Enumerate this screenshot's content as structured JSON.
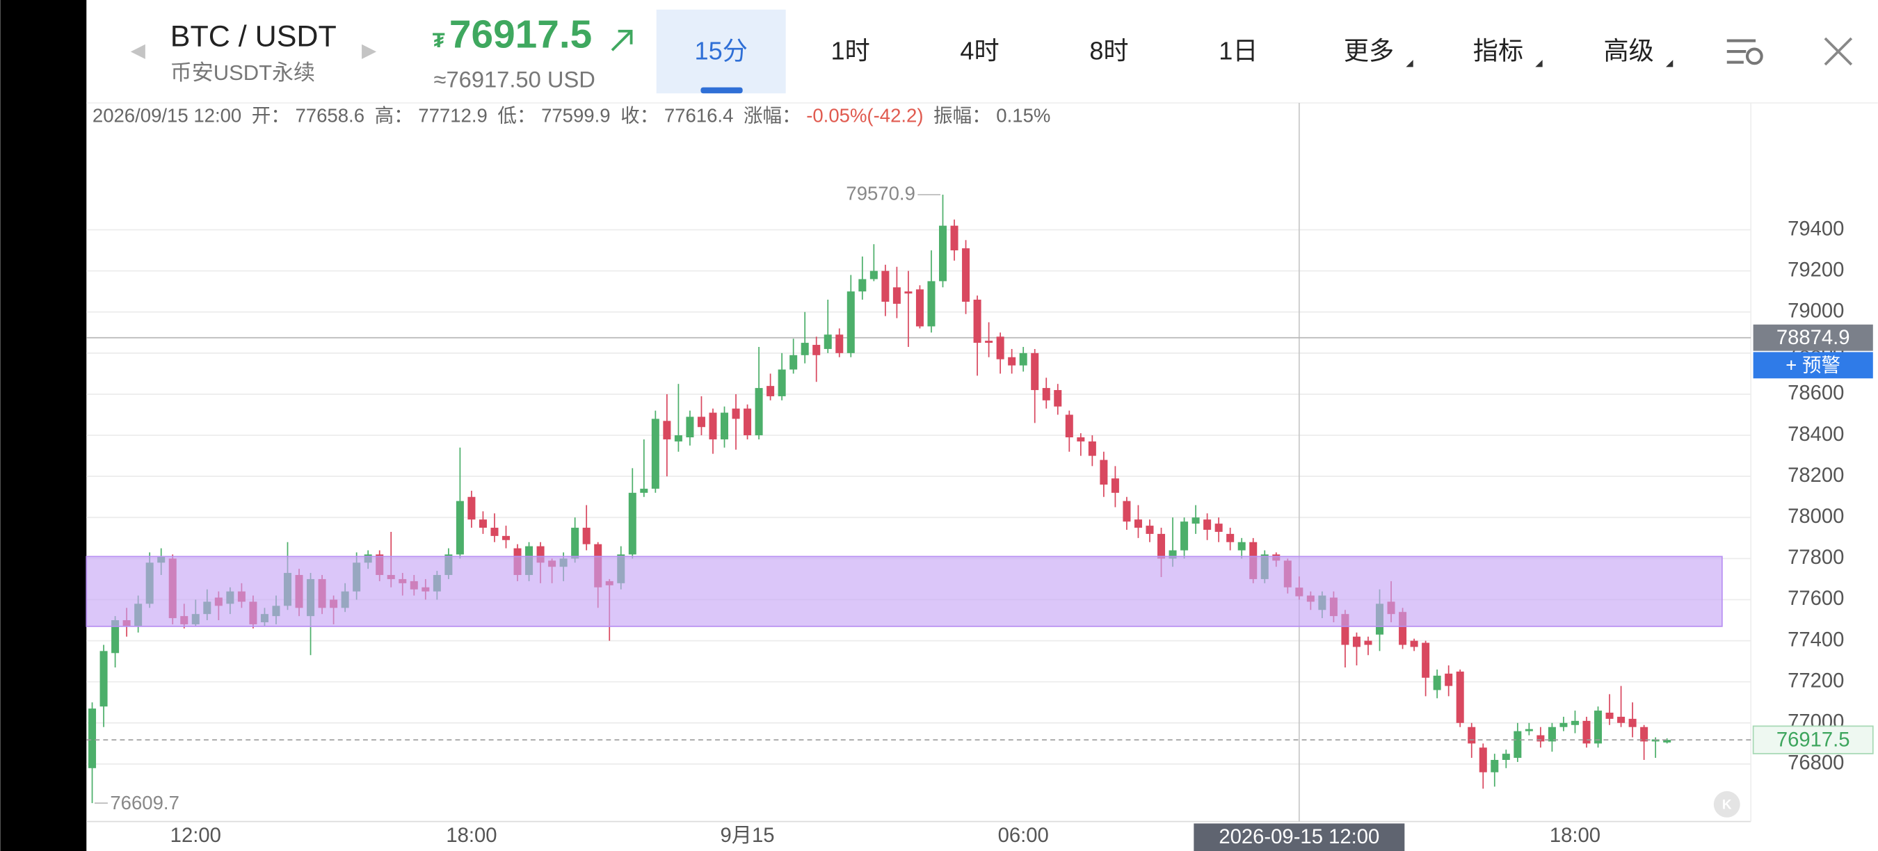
{
  "header": {
    "symbol": "BTC / USDT",
    "market": "币安USDT永续",
    "usd_price": "≈76917.50 USD"
  },
  "tabs": [
    "15分",
    "1时",
    "4时",
    "8时",
    "1日",
    "更多",
    "指标",
    "高级"
  ],
  "info": {
    "time": "2026/09/15 12:00",
    "open_label": "开：",
    "high_label": "高：",
    "low_label": "低：",
    "close_label": "收：",
    "change_label": "涨幅：",
    "change": "-0.05%(-42.2)",
    "amplitude_label": "振幅：",
    "amplitude": "0.15%"
  },
  "chart_data": {
    "type": "candlestick",
    "categories": [
      null,
      null,
      null,
      null,
      null,
      null,
      null,
      null,
      null,
      "12:00",
      null,
      null,
      null,
      null,
      null,
      null,
      null,
      null,
      null,
      null,
      null,
      null,
      null,
      null,
      null,
      null,
      null,
      null,
      null,
      null,
      null,
      null,
      null,
      "18:00",
      null,
      null,
      null,
      null,
      null,
      null,
      null,
      null,
      null,
      null,
      null,
      null,
      null,
      null,
      null,
      null,
      null,
      null,
      null,
      null,
      null,
      null,
      null,
      "9月15",
      null,
      null,
      null,
      null,
      null,
      null,
      null,
      null,
      null,
      null,
      null,
      null,
      null,
      null,
      null,
      null,
      null,
      null,
      null,
      null,
      null,
      null,
      null,
      "06:00",
      null,
      null,
      null,
      null,
      null,
      null,
      null,
      null,
      null,
      null,
      null,
      null,
      null,
      null,
      null,
      null,
      null,
      null,
      null,
      null,
      null,
      null,
      null,
      null,
      null,
      null,
      null,
      null,
      null,
      null,
      null,
      null,
      null,
      null,
      null,
      null,
      null,
      null,
      null,
      null,
      null,
      null,
      null,
      null,
      null,
      null,
      null,
      "18:00",
      null,
      null,
      null,
      null,
      null,
      null,
      null,
      null
    ],
    "open": [
      76780,
      77080,
      77340,
      77500,
      77470,
      77580,
      77780,
      77800,
      77520,
      77480,
      77530,
      77610,
      77580,
      77640,
      77590,
      77490,
      77520,
      77570,
      77720,
      77520,
      77700,
      77600,
      77560,
      77640,
      77780,
      77820,
      77720,
      77700,
      77690,
      77660,
      77640,
      77720,
      77820,
      78100,
      77990,
      77950,
      77910,
      77850,
      77720,
      77860,
      77790,
      77760,
      77800,
      77950,
      77870,
      77690,
      77680,
      77820,
      78120,
      78140,
      78470,
      78370,
      78390,
      78490,
      78510,
      78380,
      78530,
      78530,
      78400,
      78640,
      78590,
      78720,
      78790,
      78840,
      78820,
      78890,
      78800,
      79100,
      79160,
      79200,
      79120,
      79100,
      79110,
      78930,
      79150,
      79420,
      79310,
      79060,
      78860,
      78880,
      78780,
      78740,
      78800,
      78630,
      78620,
      78500,
      78390,
      78370,
      78280,
      78190,
      78080,
      77990,
      77960,
      77920,
      77800,
      77840,
      77970,
      77990,
      77970,
      77920,
      77840,
      77880,
      77700,
      77820,
      77790,
      77658.6,
      77620,
      77550,
      77610,
      77530,
      77420,
      77400,
      77430,
      77590,
      77540,
      77400,
      77390,
      77160,
      77240,
      77250,
      76980,
      76880,
      76760,
      76820,
      76830,
      76960,
      76940,
      76910,
      76980,
      76990,
      77010,
      76900,
      77050,
      77030,
      77020,
      76980,
      76910,
      76905
    ],
    "high": [
      77100,
      77380,
      77520,
      77560,
      77620,
      77830,
      77850,
      77820,
      77580,
      77600,
      77650,
      77640,
      77660,
      77680,
      77620,
      77560,
      77620,
      77880,
      77750,
      77730,
      77720,
      77620,
      77680,
      77830,
      77840,
      77840,
      77930,
      77730,
      77720,
      77700,
      77740,
      77850,
      78340,
      78130,
      78030,
      78020,
      77960,
      77870,
      77880,
      77880,
      77800,
      77830,
      78000,
      78060,
      77880,
      77700,
      77860,
      78240,
      78380,
      78520,
      78600,
      78650,
      78520,
      78590,
      78530,
      78540,
      78600,
      78550,
      78830,
      78700,
      78800,
      78870,
      79000,
      78880,
      79060,
      78920,
      79180,
      79270,
      79330,
      79230,
      79220,
      79200,
      79130,
      79300,
      79570.9,
      79450,
      79350,
      79080,
      78950,
      78900,
      78820,
      78830,
      78820,
      78680,
      78650,
      78520,
      78410,
      78400,
      78320,
      78250,
      78100,
      78060,
      77990,
      77950,
      78000,
      78000,
      78060,
      78020,
      78000,
      77950,
      77900,
      77900,
      77840,
      77830,
      77800,
      77712.9,
      77640,
      77640,
      77640,
      77550,
      77440,
      77420,
      77650,
      77690,
      77560,
      77410,
      77400,
      77260,
      77280,
      77260,
      77000,
      76900,
      76850,
      76870,
      77000,
      77000,
      76980,
      77000,
      77030,
      77060,
      77030,
      77080,
      77140,
      77180,
      77100,
      76990,
      76930,
      76925
    ],
    "low": [
      76609.7,
      76980,
      77270,
      77420,
      77440,
      77560,
      77720,
      77480,
      77460,
      77470,
      77500,
      77500,
      77530,
      77560,
      77460,
      77470,
      77480,
      77550,
      77520,
      77330,
      77530,
      77480,
      77540,
      77600,
      77750,
      77690,
      77660,
      77620,
      77620,
      77600,
      77600,
      77700,
      77800,
      77950,
      77920,
      77880,
      77850,
      77690,
      77690,
      77680,
      77680,
      77690,
      77780,
      77840,
      77560,
      77400,
      77650,
      77800,
      78100,
      78120,
      78200,
      78320,
      78350,
      78400,
      78310,
      78340,
      78330,
      78380,
      78380,
      78570,
      78570,
      78700,
      78750,
      78660,
      78800,
      78780,
      78780,
      79060,
      79150,
      78980,
      78970,
      78830,
      78920,
      78900,
      79120,
      79250,
      78990,
      78690,
      78780,
      78700,
      78700,
      78710,
      78460,
      78530,
      78500,
      78320,
      78300,
      78250,
      78100,
      78050,
      77940,
      77900,
      77880,
      77710,
      77760,
      77800,
      77920,
      77890,
      77880,
      77840,
      77800,
      77680,
      77680,
      77760,
      77630,
      77599.9,
      77550,
      77510,
      77490,
      77270,
      77280,
      77330,
      77350,
      77490,
      77360,
      77350,
      77130,
      77120,
      77130,
      76980,
      76830,
      76680,
      76690,
      76780,
      76810,
      76940,
      76880,
      76860,
      76960,
      76950,
      76880,
      76880,
      76990,
      76980,
      76930,
      76820,
      76830,
      76900
    ],
    "close": [
      77070,
      77350,
      77500,
      77470,
      77580,
      77780,
      77810,
      77510,
      77480,
      77530,
      77590,
      77570,
      77640,
      77590,
      77480,
      77530,
      77570,
      77730,
      77560,
      77700,
      77560,
      77560,
      77640,
      77780,
      77820,
      77720,
      77700,
      77680,
      77650,
      77640,
      77720,
      77820,
      78080,
      77990,
      77950,
      77910,
      77890,
      77720,
      77860,
      77780,
      77760,
      77800,
      77950,
      77870,
      77660,
      77670,
      77820,
      78120,
      78140,
      78480,
      78380,
      78400,
      78490,
      78440,
      78380,
      78510,
      78480,
      78400,
      78630,
      78590,
      78720,
      78790,
      78850,
      78790,
      78890,
      78800,
      79100,
      79160,
      79200,
      79050,
      79040,
      79090,
      78930,
      79150,
      79420,
      79300,
      79050,
      78850,
      78850,
      78770,
      78740,
      78800,
      78620,
      78570,
      78540,
      78390,
      78370,
      78300,
      78160,
      78120,
      77980,
      77950,
      77920,
      77800,
      77840,
      77980,
      78000,
      77940,
      77930,
      77880,
      77880,
      77700,
      77820,
      77790,
      77660,
      77616.4,
      77590,
      77620,
      77520,
      77380,
      77370,
      77380,
      77580,
      77530,
      77380,
      77370,
      77220,
      77230,
      77180,
      77000,
      76900,
      76760,
      76820,
      76850,
      76960,
      76970,
      76910,
      76980,
      77000,
      77010,
      76900,
      77060,
      77020,
      77000,
      76980,
      76910,
      76920,
      76917.5
    ],
    "up_color": "#4caf6a",
    "down_color": "#d9485f",
    "ylim": [
      76520,
      80000
    ],
    "yticks": [
      76800,
      77000,
      77200,
      77400,
      77600,
      77800,
      78000,
      78200,
      78400,
      78600,
      78800,
      79000,
      79200,
      79400
    ],
    "grid": true,
    "zone": [
      77470,
      77810
    ],
    "zone_color": "#c5a3f6",
    "price_line": 78874.9,
    "alert_button": "+ 预警",
    "crosshair_label": "2026-09-15 12:00"
  }
}
